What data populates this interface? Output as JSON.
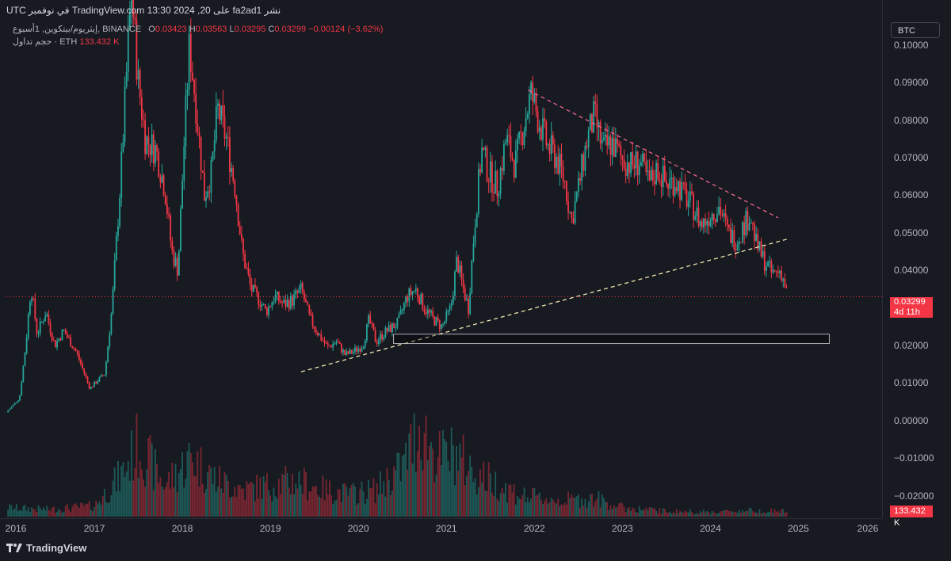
{
  "header": {
    "published": "نشر fa2ad1 على TradingView.com 13:30 2024 ,20 في نوفمبر UTC"
  },
  "legend": {
    "symbol": "إيثريوم/بيتكوين, 1أسبوع, BINANCE",
    "o_key": "O",
    "o": "0.03423",
    "h_key": "H",
    "h": "0.03563",
    "l_key": "L",
    "l": "0.03295",
    "c_key": "C",
    "c": "0.03299",
    "change": "−0.00124 (−3.62%)",
    "volume_label": "حجم تداول · ETH",
    "volume_value": "133.432 K"
  },
  "symbol_box": "BTC",
  "price_tags": {
    "last_price": "0.03299",
    "countdown": "4d 11h",
    "volume": "133.432 K"
  },
  "footer": {
    "brand": "TradingView"
  },
  "colors": {
    "background": "#171a21",
    "up": "#26a69a",
    "down": "#f23645",
    "support_line": "#f0e6b0",
    "resistance_line": "#f06292",
    "zone": "#000000"
  },
  "chart_data": {
    "type": "candlestick",
    "y_axis": {
      "range": [
        -0.026,
        0.112
      ],
      "ticks": [
        {
          "value": 0.1,
          "label": "0.10000"
        },
        {
          "value": 0.09,
          "label": "0.09000"
        },
        {
          "value": 0.08,
          "label": "0.08000"
        },
        {
          "value": 0.07,
          "label": "0.07000"
        },
        {
          "value": 0.06,
          "label": "0.06000"
        },
        {
          "value": 0.05,
          "label": "0.05000"
        },
        {
          "value": 0.04,
          "label": "0.04000"
        },
        {
          "value": 0.02,
          "label": "0.02000"
        },
        {
          "value": 0.01,
          "label": "0.01000"
        },
        {
          "value": 0.0,
          "label": "0.00000"
        },
        {
          "value": -0.01,
          "label": "−0.01000"
        },
        {
          "value": -0.02,
          "label": "−0.02000"
        }
      ]
    },
    "x_axis": {
      "range": [
        2016.0,
        2025.95
      ],
      "ticks": [
        "2016",
        "2017",
        "2018",
        "2019",
        "2020",
        "2021",
        "2022",
        "2023",
        "2024",
        "2025",
        "2026"
      ]
    },
    "price_path": [
      [
        2016.0,
        0.0022
      ],
      [
        2016.15,
        0.006
      ],
      [
        2016.22,
        0.02
      ],
      [
        2016.28,
        0.036
      ],
      [
        2016.35,
        0.023
      ],
      [
        2016.45,
        0.029
      ],
      [
        2016.55,
        0.02
      ],
      [
        2016.65,
        0.024
      ],
      [
        2016.8,
        0.018
      ],
      [
        2016.95,
        0.0085
      ],
      [
        2017.05,
        0.011
      ],
      [
        2017.12,
        0.0125
      ],
      [
        2017.2,
        0.03
      ],
      [
        2017.3,
        0.065
      ],
      [
        2017.42,
        0.115
      ],
      [
        2017.5,
        0.09
      ],
      [
        2017.58,
        0.075
      ],
      [
        2017.7,
        0.072
      ],
      [
        2017.8,
        0.062
      ],
      [
        2017.88,
        0.045
      ],
      [
        2017.95,
        0.04
      ],
      [
        2018.02,
        0.074
      ],
      [
        2018.08,
        0.1
      ],
      [
        2018.15,
        0.085
      ],
      [
        2018.25,
        0.06
      ],
      [
        2018.33,
        0.066
      ],
      [
        2018.4,
        0.083
      ],
      [
        2018.5,
        0.075
      ],
      [
        2018.6,
        0.062
      ],
      [
        2018.68,
        0.045
      ],
      [
        2018.78,
        0.035
      ],
      [
        2018.88,
        0.032
      ],
      [
        2018.95,
        0.029
      ],
      [
        2019.05,
        0.033
      ],
      [
        2019.15,
        0.031
      ],
      [
        2019.25,
        0.032
      ],
      [
        2019.35,
        0.035
      ],
      [
        2019.45,
        0.027
      ],
      [
        2019.55,
        0.023
      ],
      [
        2019.65,
        0.0195
      ],
      [
        2019.75,
        0.021
      ],
      [
        2019.85,
        0.0175
      ],
      [
        2019.95,
        0.0185
      ],
      [
        2020.05,
        0.02
      ],
      [
        2020.12,
        0.027
      ],
      [
        2020.2,
        0.021
      ],
      [
        2020.3,
        0.0235
      ],
      [
        2020.45,
        0.026
      ],
      [
        2020.55,
        0.033
      ],
      [
        2020.65,
        0.035
      ],
      [
        2020.75,
        0.03
      ],
      [
        2020.85,
        0.027
      ],
      [
        2020.95,
        0.025
      ],
      [
        2021.05,
        0.03
      ],
      [
        2021.12,
        0.043
      ],
      [
        2021.18,
        0.036
      ],
      [
        2021.25,
        0.03
      ],
      [
        2021.32,
        0.052
      ],
      [
        2021.4,
        0.072
      ],
      [
        2021.48,
        0.066
      ],
      [
        2021.58,
        0.062
      ],
      [
        2021.68,
        0.075
      ],
      [
        2021.78,
        0.068
      ],
      [
        2021.88,
        0.079
      ],
      [
        2021.96,
        0.087
      ],
      [
        2022.05,
        0.08
      ],
      [
        2022.15,
        0.073
      ],
      [
        2022.25,
        0.07
      ],
      [
        2022.35,
        0.063
      ],
      [
        2022.42,
        0.053
      ],
      [
        2022.5,
        0.062
      ],
      [
        2022.6,
        0.075
      ],
      [
        2022.68,
        0.081
      ],
      [
        2022.78,
        0.072
      ],
      [
        2022.88,
        0.074
      ],
      [
        2022.98,
        0.07
      ],
      [
        2023.1,
        0.068
      ],
      [
        2023.2,
        0.069
      ],
      [
        2023.3,
        0.063
      ],
      [
        2023.4,
        0.067
      ],
      [
        2023.5,
        0.063
      ],
      [
        2023.6,
        0.064
      ],
      [
        2023.7,
        0.06
      ],
      [
        2023.8,
        0.057
      ],
      [
        2023.9,
        0.052
      ],
      [
        2024.0,
        0.055
      ],
      [
        2024.1,
        0.057
      ],
      [
        2024.2,
        0.05
      ],
      [
        2024.3,
        0.048
      ],
      [
        2024.38,
        0.052
      ],
      [
        2024.45,
        0.055
      ],
      [
        2024.52,
        0.047
      ],
      [
        2024.6,
        0.043
      ],
      [
        2024.7,
        0.039
      ],
      [
        2024.8,
        0.04
      ],
      [
        2024.88,
        0.033
      ]
    ],
    "volume_path": [
      [
        2016.0,
        0.1
      ],
      [
        2016.5,
        0.08
      ],
      [
        2017.0,
        0.12
      ],
      [
        2017.3,
        0.45
      ],
      [
        2017.5,
        0.8
      ],
      [
        2017.8,
        0.35
      ],
      [
        2018.1,
        0.65
      ],
      [
        2018.4,
        0.4
      ],
      [
        2018.7,
        0.3
      ],
      [
        2019.0,
        0.35
      ],
      [
        2019.3,
        0.4
      ],
      [
        2019.6,
        0.3
      ],
      [
        2019.9,
        0.25
      ],
      [
        2020.2,
        0.3
      ],
      [
        2020.5,
        0.55
      ],
      [
        2020.7,
        1.0
      ],
      [
        2020.9,
        0.65
      ],
      [
        2021.1,
        0.7
      ],
      [
        2021.3,
        0.5
      ],
      [
        2021.6,
        0.35
      ],
      [
        2021.9,
        0.22
      ],
      [
        2022.3,
        0.18
      ],
      [
        2022.7,
        0.2
      ],
      [
        2023.0,
        0.1
      ],
      [
        2023.5,
        0.06
      ],
      [
        2024.0,
        0.05
      ],
      [
        2024.5,
        0.07
      ],
      [
        2024.88,
        0.06
      ]
    ],
    "annotations": [
      {
        "type": "trendline",
        "style": "dashed",
        "name": "support",
        "from": [
          2019.35,
          0.013
        ],
        "to": [
          2024.9,
          0.0485
        ]
      },
      {
        "type": "trendline",
        "style": "dashed",
        "name": "resistance",
        "from": [
          2021.93,
          0.088
        ],
        "to": [
          2024.77,
          0.054
        ]
      },
      {
        "type": "rectangle",
        "name": "zone",
        "from": [
          2020.4,
          0.023
        ],
        "to": [
          2025.35,
          0.0205
        ]
      },
      {
        "type": "hline",
        "style": "dotted",
        "name": "last-price",
        "value": 0.03299
      }
    ]
  }
}
